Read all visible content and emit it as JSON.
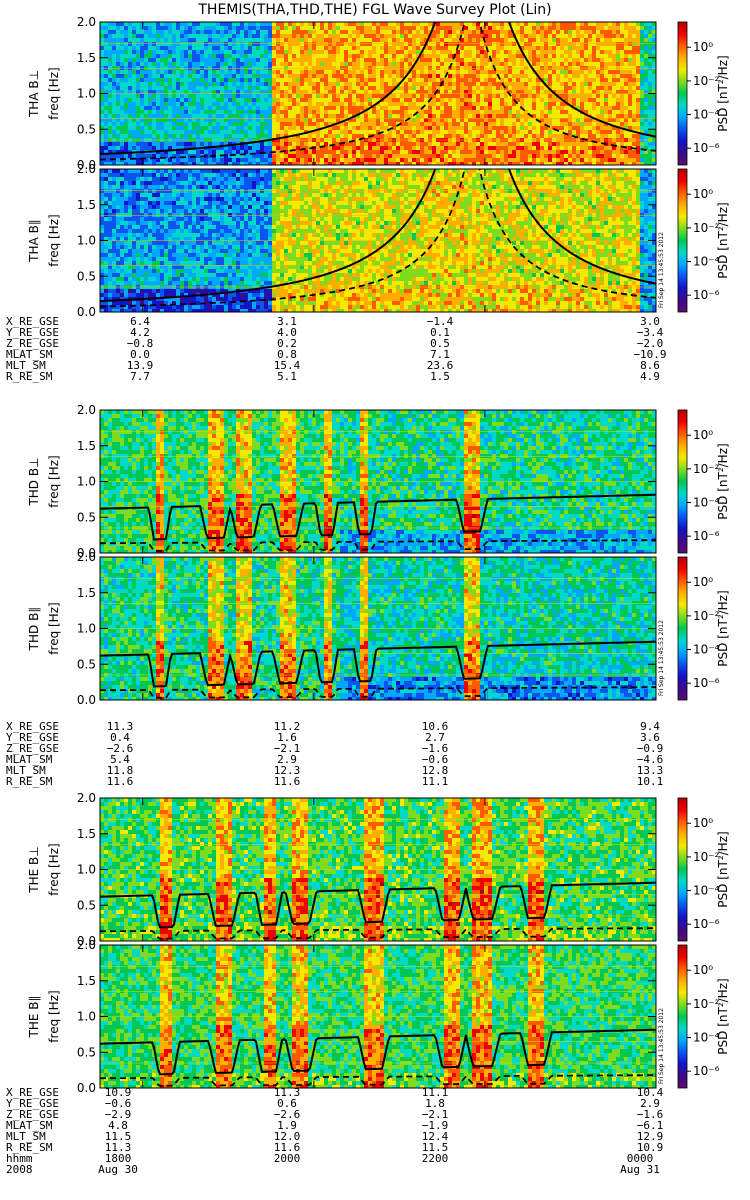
{
  "title": "THEMIS(THA,THD,THE) FGL Wave Survey Plot (Lin)",
  "timestamp": "Fri Sep 14 13:45:53 2012",
  "colors": {
    "solid_line": "#000000",
    "dashed_line": "#000000"
  },
  "colorbar": {
    "label": "PSD [nT²/Hz]",
    "tick_labels": [
      "10⁰",
      "10⁻²",
      "10⁻⁴",
      "10⁻⁶"
    ],
    "log_range": [
      -7,
      1.5
    ],
    "palette": [
      "#5a0d70",
      "#3d0a8a",
      "#1313c8",
      "#0a55f0",
      "#00a8ff",
      "#00d8c8",
      "#00c853",
      "#7ddc1f",
      "#f4ea00",
      "#ffae00",
      "#ff5a00",
      "#ee0000",
      "#b50000"
    ]
  },
  "ephem_labels": [
    "X_RE_GSE",
    "Y_RE_GSE",
    "Z_RE_GSE",
    "MLAT_SM",
    "MLT_SM",
    "R_RE_SM"
  ],
  "x_axis": {
    "hhmm_label": "hhmm",
    "year_label": "2008",
    "tick_times": [
      "1800",
      "2000",
      "2200",
      "0000"
    ],
    "date_labels": [
      "Aug 30",
      "Aug 31"
    ]
  },
  "chart_data": {
    "type": "heatmap",
    "x_range_hours": [
      17.5,
      24.0
    ],
    "ylim": [
      0,
      2.0
    ],
    "y_ticks": [
      "0.0",
      "0.5",
      "1.0",
      "1.5",
      "2.0"
    ],
    "ylabel_unit": "freq [Hz]",
    "panels": [
      {
        "label": "THA B⊥",
        "probe": "tha",
        "component": "perp"
      },
      {
        "label": "THA B∥",
        "probe": "tha",
        "component": "par"
      },
      {
        "label": "THD B⊥",
        "probe": "thd",
        "component": "perp"
      },
      {
        "label": "THD B∥",
        "probe": "thd",
        "component": "par"
      },
      {
        "label": "THE B⊥",
        "probe": "the",
        "component": "perp"
      },
      {
        "label": "THE B∥",
        "probe": "the",
        "component": "par"
      }
    ],
    "ephemeris": [
      {
        "probe": "THA",
        "columns": [
          [
            "6.4",
            "4.2",
            "−0.8",
            "0.0",
            "13.9",
            "7.7"
          ],
          [
            "3.1",
            "4.0",
            "0.2",
            "0.8",
            "15.4",
            "5.1"
          ],
          [
            "−1.4",
            "0.1",
            "0.5",
            "7.1",
            "23.6",
            "1.5"
          ],
          [
            "3.0",
            "−3.4",
            "−2.0",
            "−10.9",
            "8.6",
            "4.9"
          ]
        ]
      },
      {
        "probe": "THD",
        "columns": [
          [
            "11.3",
            "0.4",
            "−2.6",
            "5.4",
            "11.8",
            "11.6"
          ],
          [
            "11.2",
            "1.6",
            "−2.1",
            "2.9",
            "12.3",
            "11.6"
          ],
          [
            "10.6",
            "2.7",
            "−1.6",
            "−0.6",
            "12.8",
            "11.1"
          ],
          [
            "9.4",
            "3.6",
            "−0.9",
            "−4.6",
            "13.3",
            "10.1"
          ]
        ]
      },
      {
        "probe": "THE",
        "columns": [
          [
            "10.9",
            "−0.6",
            "−2.9",
            "4.8",
            "11.5",
            "11.3"
          ],
          [
            "11.3",
            "0.6",
            "−2.6",
            "1.9",
            "12.0",
            "11.6"
          ],
          [
            "11.1",
            "1.8",
            "−2.1",
            "−1.9",
            "12.4",
            "11.5"
          ],
          [
            "10.4",
            "2.9",
            "−1.6",
            "−6.1",
            "12.9",
            "10.9"
          ]
        ]
      }
    ]
  }
}
